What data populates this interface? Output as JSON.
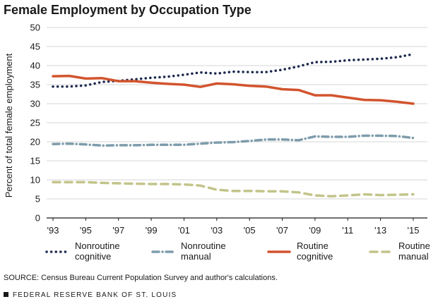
{
  "chart_data": {
    "type": "line",
    "title": "Female Employment by Occupation Type",
    "ylabel": "Percent of total female employment",
    "xlabel": "",
    "ylim": [
      0,
      50
    ],
    "yticks": [
      0,
      5,
      10,
      15,
      20,
      25,
      30,
      35,
      40,
      45,
      50
    ],
    "x": [
      1993,
      1994,
      1995,
      1996,
      1997,
      1998,
      1999,
      2000,
      2001,
      2002,
      2003,
      2004,
      2005,
      2006,
      2007,
      2008,
      2009,
      2010,
      2011,
      2012,
      2013,
      2014,
      2015
    ],
    "xticks": [
      {
        "x": 1993,
        "label": "'93"
      },
      {
        "x": 1995,
        "label": "'95"
      },
      {
        "x": 1997,
        "label": "'97"
      },
      {
        "x": 1999,
        "label": "'99"
      },
      {
        "x": 2001,
        "label": "'01"
      },
      {
        "x": 2003,
        "label": "'03"
      },
      {
        "x": 2005,
        "label": "'05"
      },
      {
        "x": 2007,
        "label": "'07"
      },
      {
        "x": 2009,
        "label": "'09"
      },
      {
        "x": 2011,
        "label": "'11"
      },
      {
        "x": 2013,
        "label": "'13"
      },
      {
        "x": 2015,
        "label": "'15"
      }
    ],
    "grid": true,
    "legend_position": "bottom",
    "series": [
      {
        "name": "Nonroutine cognitive",
        "legend_lines": [
          "Nonroutine",
          "cognitive"
        ],
        "color": "#1c2a4e",
        "style": "dotted",
        "values": [
          34.5,
          34.5,
          34.8,
          35.7,
          36.0,
          36.4,
          36.8,
          37.1,
          37.6,
          38.2,
          37.9,
          38.4,
          38.3,
          38.3,
          38.9,
          39.8,
          40.9,
          41.0,
          41.4,
          41.6,
          41.8,
          42.2,
          43.0
        ]
      },
      {
        "name": "Nonroutine manual",
        "legend_lines": [
          "Nonroutine",
          "manual"
        ],
        "color": "#7e9cab",
        "style": "dashdot",
        "values": [
          19.4,
          19.5,
          19.3,
          19.0,
          19.1,
          19.1,
          19.2,
          19.2,
          19.2,
          19.5,
          19.8,
          19.9,
          20.2,
          20.6,
          20.6,
          20.4,
          21.4,
          21.3,
          21.3,
          21.6,
          21.6,
          21.5,
          21.0
        ]
      },
      {
        "name": "Routine cognitive",
        "legend_lines": [
          "Routine",
          "cognitive"
        ],
        "color": "#d2542e",
        "style": "solid",
        "values": [
          37.2,
          37.3,
          36.6,
          36.7,
          35.9,
          35.9,
          35.5,
          35.2,
          35.0,
          34.4,
          35.3,
          35.1,
          34.7,
          34.5,
          33.8,
          33.6,
          32.2,
          32.2,
          31.6,
          31.0,
          30.9,
          30.5,
          30.0
        ]
      },
      {
        "name": "Routine manual",
        "legend_lines": [
          "Routine",
          "manual"
        ],
        "color": "#c3c48a",
        "style": "dashed",
        "values": [
          9.4,
          9.4,
          9.4,
          9.2,
          9.1,
          9.0,
          8.9,
          8.9,
          8.8,
          8.5,
          7.4,
          7.1,
          7.1,
          7.0,
          7.0,
          6.7,
          5.9,
          5.7,
          5.9,
          6.2,
          6.0,
          6.1,
          6.2
        ]
      }
    ]
  },
  "source_text": "SOURCE: Census Bureau Current Population Survey and author's calculations.",
  "footer_text": "FEDERAL RESERVE BANK OF ST. LOUIS"
}
